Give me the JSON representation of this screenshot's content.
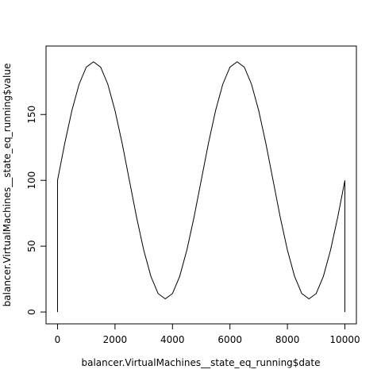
{
  "chart_data": {
    "type": "line",
    "xlabel": "balancer.VirtualMachines__state_eq_running$date",
    "ylabel": "balancer.VirtualMachines__state_eq_running$value",
    "x": [
      0,
      0,
      250,
      500,
      750,
      1000,
      1250,
      1500,
      1750,
      2000,
      2250,
      2500,
      2750,
      3000,
      3250,
      3500,
      3750,
      4000,
      4250,
      4500,
      4750,
      5000,
      5250,
      5500,
      5750,
      6000,
      6250,
      6500,
      6750,
      7000,
      7250,
      7500,
      7750,
      8000,
      8250,
      8500,
      8750,
      9000,
      9250,
      9500,
      9750,
      10000,
      10000
    ],
    "series": [
      {
        "name": "value",
        "color": "#000000",
        "values": [
          0,
          100,
          128,
          153,
          173,
          186,
          190,
          186,
          173,
          153,
          128,
          100,
          72,
          47,
          27,
          14,
          10,
          14,
          27,
          47,
          72,
          100,
          128,
          153,
          173,
          186,
          190,
          186,
          173,
          153,
          128,
          100,
          72,
          47,
          27,
          14,
          10,
          14,
          27,
          47,
          72,
          100,
          0
        ]
      }
    ],
    "xlim": [
      -400,
      10400
    ],
    "ylim": [
      -9,
      202
    ],
    "xticks": [
      0,
      2000,
      4000,
      6000,
      8000,
      10000
    ],
    "yticks": [
      0,
      50,
      100,
      150
    ]
  }
}
